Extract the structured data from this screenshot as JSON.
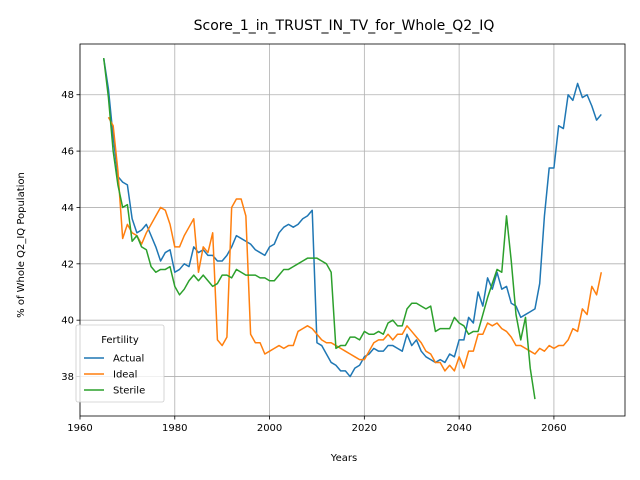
{
  "chart_data": {
    "type": "line",
    "title": "Score_1_in_TRUST_IN_TV_for_Whole_Q2_IQ",
    "xlabel": "Years",
    "ylabel": "% of Whole Q2_IQ Population",
    "xlim": [
      1960,
      2075
    ],
    "ylim": [
      36.6,
      49.8
    ],
    "xticks": [
      1960,
      1980,
      2000,
      2020,
      2040,
      2060
    ],
    "yticks": [
      38,
      40,
      42,
      44,
      46,
      48
    ],
    "grid": true,
    "legend": {
      "title": "Fertility",
      "placement": "lower-left"
    },
    "series": [
      {
        "name": "Actual",
        "color": "#1f77b4",
        "points": [
          [
            1965,
            49.3
          ],
          [
            1966,
            48.2
          ],
          [
            1967,
            46.5
          ],
          [
            1968,
            45.1
          ],
          [
            1969,
            44.9
          ],
          [
            1970,
            44.8
          ],
          [
            1971,
            43.6
          ],
          [
            1972,
            43.1
          ],
          [
            1973,
            43.2
          ],
          [
            1974,
            43.4
          ],
          [
            1975,
            43.0
          ],
          [
            1976,
            42.6
          ],
          [
            1977,
            42.1
          ],
          [
            1978,
            42.4
          ],
          [
            1979,
            42.5
          ],
          [
            1980,
            41.7
          ],
          [
            1981,
            41.8
          ],
          [
            1982,
            42.0
          ],
          [
            1983,
            41.9
          ],
          [
            1984,
            42.6
          ],
          [
            1985,
            42.4
          ],
          [
            1986,
            42.5
          ],
          [
            1987,
            42.3
          ],
          [
            1988,
            42.3
          ],
          [
            1989,
            42.1
          ],
          [
            1990,
            42.1
          ],
          [
            1991,
            42.3
          ],
          [
            1992,
            42.6
          ],
          [
            1993,
            43.0
          ],
          [
            1994,
            42.9
          ],
          [
            1995,
            42.8
          ],
          [
            1996,
            42.7
          ],
          [
            1997,
            42.5
          ],
          [
            1998,
            42.4
          ],
          [
            1999,
            42.3
          ],
          [
            2000,
            42.6
          ],
          [
            2001,
            42.7
          ],
          [
            2002,
            43.1
          ],
          [
            2003,
            43.3
          ],
          [
            2004,
            43.4
          ],
          [
            2005,
            43.3
          ],
          [
            2006,
            43.4
          ],
          [
            2007,
            43.6
          ],
          [
            2008,
            43.7
          ],
          [
            2009,
            43.9
          ],
          [
            2010,
            39.2
          ],
          [
            2011,
            39.1
          ],
          [
            2012,
            38.8
          ],
          [
            2013,
            38.5
          ],
          [
            2014,
            38.4
          ],
          [
            2015,
            38.2
          ],
          [
            2016,
            38.2
          ],
          [
            2017,
            38.0
          ],
          [
            2018,
            38.3
          ],
          [
            2019,
            38.4
          ],
          [
            2020,
            38.7
          ],
          [
            2021,
            38.8
          ],
          [
            2022,
            39.0
          ],
          [
            2023,
            38.9
          ],
          [
            2024,
            38.9
          ],
          [
            2025,
            39.1
          ],
          [
            2026,
            39.1
          ],
          [
            2027,
            39.0
          ],
          [
            2028,
            38.9
          ],
          [
            2029,
            39.5
          ],
          [
            2030,
            39.1
          ],
          [
            2031,
            39.3
          ],
          [
            2032,
            38.9
          ],
          [
            2033,
            38.7
          ],
          [
            2034,
            38.6
          ],
          [
            2035,
            38.5
          ],
          [
            2036,
            38.6
          ],
          [
            2037,
            38.5
          ],
          [
            2038,
            38.8
          ],
          [
            2039,
            38.7
          ],
          [
            2040,
            39.3
          ],
          [
            2041,
            39.3
          ],
          [
            2042,
            40.1
          ],
          [
            2043,
            39.9
          ],
          [
            2044,
            41.0
          ],
          [
            2045,
            40.5
          ],
          [
            2046,
            41.5
          ],
          [
            2047,
            41.1
          ],
          [
            2048,
            41.7
          ],
          [
            2049,
            41.1
          ],
          [
            2050,
            41.2
          ],
          [
            2051,
            40.6
          ],
          [
            2052,
            40.5
          ],
          [
            2053,
            40.1
          ],
          [
            2054,
            40.2
          ],
          [
            2055,
            40.3
          ],
          [
            2056,
            40.4
          ],
          [
            2057,
            41.3
          ],
          [
            2058,
            43.7
          ],
          [
            2059,
            45.4
          ],
          [
            2060,
            45.4
          ],
          [
            2061,
            46.9
          ],
          [
            2062,
            46.8
          ],
          [
            2063,
            48.0
          ],
          [
            2064,
            47.8
          ],
          [
            2065,
            48.4
          ],
          [
            2066,
            47.9
          ],
          [
            2067,
            48.0
          ],
          [
            2068,
            47.6
          ],
          [
            2069,
            47.1
          ],
          [
            2070,
            47.3
          ]
        ]
      },
      {
        "name": "Ideal",
        "color": "#ff7f0e",
        "points": [
          [
            1966,
            47.2
          ],
          [
            1967,
            46.9
          ],
          [
            1968,
            45.3
          ],
          [
            1969,
            42.9
          ],
          [
            1970,
            43.4
          ],
          [
            1971,
            43.1
          ],
          [
            1972,
            43.0
          ],
          [
            1973,
            42.7
          ],
          [
            1974,
            43.1
          ],
          [
            1975,
            43.4
          ],
          [
            1976,
            43.7
          ],
          [
            1977,
            44.0
          ],
          [
            1978,
            43.9
          ],
          [
            1979,
            43.4
          ],
          [
            1980,
            42.6
          ],
          [
            1981,
            42.6
          ],
          [
            1982,
            43.0
          ],
          [
            1983,
            43.3
          ],
          [
            1984,
            43.6
          ],
          [
            1985,
            41.7
          ],
          [
            1986,
            42.6
          ],
          [
            1987,
            42.4
          ],
          [
            1988,
            43.1
          ],
          [
            1989,
            39.3
          ],
          [
            1990,
            39.1
          ],
          [
            1991,
            39.4
          ],
          [
            1992,
            44.0
          ],
          [
            1993,
            44.3
          ],
          [
            1994,
            44.3
          ],
          [
            1995,
            43.7
          ],
          [
            1996,
            39.5
          ],
          [
            1997,
            39.2
          ],
          [
            1998,
            39.2
          ],
          [
            1999,
            38.8
          ],
          [
            2000,
            38.9
          ],
          [
            2001,
            39.0
          ],
          [
            2002,
            39.1
          ],
          [
            2003,
            39.0
          ],
          [
            2004,
            39.1
          ],
          [
            2005,
            39.1
          ],
          [
            2006,
            39.6
          ],
          [
            2007,
            39.7
          ],
          [
            2008,
            39.8
          ],
          [
            2009,
            39.7
          ],
          [
            2010,
            39.5
          ],
          [
            2011,
            39.3
          ],
          [
            2012,
            39.2
          ],
          [
            2013,
            39.2
          ],
          [
            2014,
            39.1
          ],
          [
            2015,
            39.0
          ],
          [
            2016,
            38.9
          ],
          [
            2017,
            38.8
          ],
          [
            2018,
            38.7
          ],
          [
            2019,
            38.6
          ],
          [
            2020,
            38.6
          ],
          [
            2021,
            38.9
          ],
          [
            2022,
            39.2
          ],
          [
            2023,
            39.3
          ],
          [
            2024,
            39.3
          ],
          [
            2025,
            39.5
          ],
          [
            2026,
            39.3
          ],
          [
            2027,
            39.5
          ],
          [
            2028,
            39.5
          ],
          [
            2029,
            39.8
          ],
          [
            2030,
            39.6
          ],
          [
            2031,
            39.4
          ],
          [
            2032,
            39.2
          ],
          [
            2033,
            38.9
          ],
          [
            2034,
            38.8
          ],
          [
            2035,
            38.5
          ],
          [
            2036,
            38.5
          ],
          [
            2037,
            38.2
          ],
          [
            2038,
            38.4
          ],
          [
            2039,
            38.2
          ],
          [
            2040,
            38.7
          ],
          [
            2041,
            38.3
          ],
          [
            2042,
            38.9
          ],
          [
            2043,
            38.9
          ],
          [
            2044,
            39.5
          ],
          [
            2045,
            39.5
          ],
          [
            2046,
            39.9
          ],
          [
            2047,
            39.8
          ],
          [
            2048,
            39.9
          ],
          [
            2049,
            39.7
          ],
          [
            2050,
            39.6
          ],
          [
            2051,
            39.4
          ],
          [
            2052,
            39.1
          ],
          [
            2053,
            39.1
          ],
          [
            2054,
            39.0
          ],
          [
            2055,
            38.9
          ],
          [
            2056,
            38.8
          ],
          [
            2057,
            39.0
          ],
          [
            2058,
            38.9
          ],
          [
            2059,
            39.1
          ],
          [
            2060,
            39.0
          ],
          [
            2061,
            39.1
          ],
          [
            2062,
            39.1
          ],
          [
            2063,
            39.3
          ],
          [
            2064,
            39.7
          ],
          [
            2065,
            39.6
          ],
          [
            2066,
            40.4
          ],
          [
            2067,
            40.2
          ],
          [
            2068,
            41.2
          ],
          [
            2069,
            40.9
          ],
          [
            2070,
            41.7
          ]
        ]
      },
      {
        "name": "Sterile",
        "color": "#2ca02c",
        "points": [
          [
            1965,
            49.3
          ],
          [
            1966,
            47.9
          ],
          [
            1967,
            46.0
          ],
          [
            1968,
            44.8
          ],
          [
            1969,
            44.0
          ],
          [
            1970,
            44.1
          ],
          [
            1971,
            42.8
          ],
          [
            1972,
            43.0
          ],
          [
            1973,
            42.6
          ],
          [
            1974,
            42.5
          ],
          [
            1975,
            41.9
          ],
          [
            1976,
            41.7
          ],
          [
            1977,
            41.8
          ],
          [
            1978,
            41.8
          ],
          [
            1979,
            41.9
          ],
          [
            1980,
            41.2
          ],
          [
            1981,
            40.9
          ],
          [
            1982,
            41.1
          ],
          [
            1983,
            41.4
          ],
          [
            1984,
            41.6
          ],
          [
            1985,
            41.4
          ],
          [
            1986,
            41.6
          ],
          [
            1987,
            41.4
          ],
          [
            1988,
            41.2
          ],
          [
            1989,
            41.3
          ],
          [
            1990,
            41.6
          ],
          [
            1991,
            41.6
          ],
          [
            1992,
            41.5
          ],
          [
            1993,
            41.8
          ],
          [
            1994,
            41.7
          ],
          [
            1995,
            41.6
          ],
          [
            1996,
            41.6
          ],
          [
            1997,
            41.6
          ],
          [
            1998,
            41.5
          ],
          [
            1999,
            41.5
          ],
          [
            2000,
            41.4
          ],
          [
            2001,
            41.4
          ],
          [
            2002,
            41.6
          ],
          [
            2003,
            41.8
          ],
          [
            2004,
            41.8
          ],
          [
            2005,
            41.9
          ],
          [
            2006,
            42.0
          ],
          [
            2007,
            42.1
          ],
          [
            2008,
            42.2
          ],
          [
            2009,
            42.2
          ],
          [
            2010,
            42.2
          ],
          [
            2011,
            42.1
          ],
          [
            2012,
            42.0
          ],
          [
            2013,
            41.7
          ],
          [
            2014,
            39.0
          ],
          [
            2015,
            39.1
          ],
          [
            2016,
            39.1
          ],
          [
            2017,
            39.4
          ],
          [
            2018,
            39.4
          ],
          [
            2019,
            39.3
          ],
          [
            2020,
            39.6
          ],
          [
            2021,
            39.5
          ],
          [
            2022,
            39.5
          ],
          [
            2023,
            39.6
          ],
          [
            2024,
            39.5
          ],
          [
            2025,
            39.9
          ],
          [
            2026,
            40.0
          ],
          [
            2027,
            39.8
          ],
          [
            2028,
            39.8
          ],
          [
            2029,
            40.4
          ],
          [
            2030,
            40.6
          ],
          [
            2031,
            40.6
          ],
          [
            2032,
            40.5
          ],
          [
            2033,
            40.4
          ],
          [
            2034,
            40.5
          ],
          [
            2035,
            39.6
          ],
          [
            2036,
            39.7
          ],
          [
            2037,
            39.7
          ],
          [
            2038,
            39.7
          ],
          [
            2039,
            40.1
          ],
          [
            2040,
            39.9
          ],
          [
            2041,
            39.8
          ],
          [
            2042,
            39.5
          ],
          [
            2043,
            39.6
          ],
          [
            2044,
            39.6
          ],
          [
            2045,
            40.2
          ],
          [
            2046,
            40.8
          ],
          [
            2047,
            41.3
          ],
          [
            2048,
            41.8
          ],
          [
            2049,
            41.7
          ],
          [
            2050,
            43.7
          ],
          [
            2051,
            42.1
          ],
          [
            2052,
            40.2
          ],
          [
            2053,
            39.3
          ],
          [
            2054,
            40.1
          ],
          [
            2055,
            38.3
          ],
          [
            2056,
            37.2
          ]
        ]
      }
    ]
  }
}
